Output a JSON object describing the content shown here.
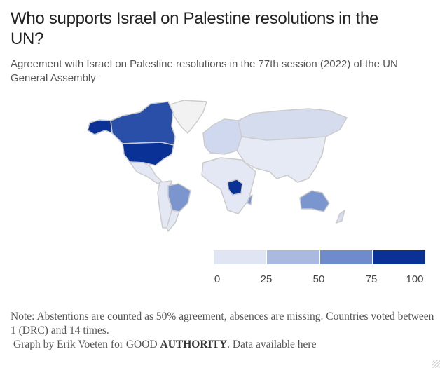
{
  "title": "Who supports Israel on Palestine resolutions in the UN?",
  "subtitle": "Agreement with Israel on Palestine resolutions in the 77th session (2022) of the UN General Assembly",
  "legend": {
    "ticks": [
      "0",
      "25",
      "50",
      "75",
      "100"
    ],
    "colors": [
      "#dfe5f3",
      "#a9b9e0",
      "#6f8bcc",
      "#3b5fb5",
      "#0a3296"
    ]
  },
  "map": {
    "no_data_color": "#f2f2f2",
    "border_color": "#cccccc",
    "regions": [
      {
        "name": "Greenland",
        "value": null
      },
      {
        "name": "Canada",
        "value": 80
      },
      {
        "name": "United States",
        "value": 100
      },
      {
        "name": "DR Congo",
        "value": 100
      },
      {
        "name": "Brazil",
        "value": 45
      },
      {
        "name": "Australia",
        "value": 50
      },
      {
        "name": "Russia",
        "value": 15
      }
    ]
  },
  "notes": {
    "note": "Note: Abstentions are counted as 50% agreement, absences are missing. Countries voted between 1 (DRC) and 14 times.",
    "credit_prefix": "Graph by Erik Voeten for GOOD ",
    "credit_brand": "AUTHORITY",
    "credit_suffix": ". Data available here"
  }
}
